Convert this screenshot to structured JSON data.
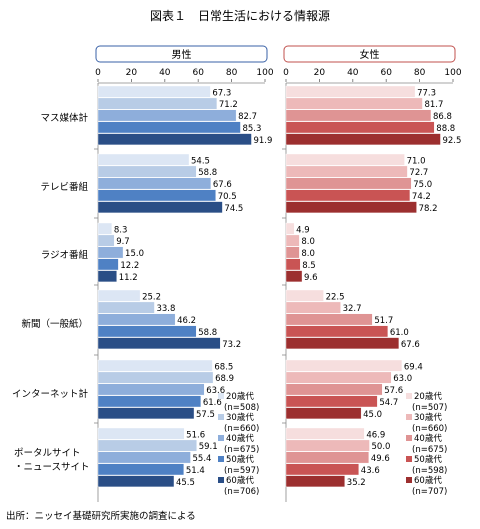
{
  "title": "図表１　日常生活における情報源",
  "source": "出所：ニッセイ基礎研究所実施の調査による",
  "chart_data": {
    "type": "bar",
    "orientation": "horizontal",
    "xlim": [
      0,
      100
    ],
    "ticks": [
      0,
      20,
      40,
      60,
      80,
      100
    ],
    "categories": [
      "マス媒体計",
      "テレビ番組",
      "ラジオ番組",
      "新聞（一般紙）",
      "インターネット計",
      "ポータルサイト\n・ニュースサイト"
    ],
    "panels": [
      {
        "name": "男性",
        "series": [
          {
            "name": "20歳代",
            "n": "(n=508)",
            "color": "#dce6f4",
            "values": [
              67.3,
              54.5,
              8.3,
              25.2,
              68.5,
              51.6
            ]
          },
          {
            "name": "30歳代",
            "n": "(n=660)",
            "color": "#b8cce6",
            "values": [
              71.2,
              58.8,
              9.7,
              33.8,
              68.9,
              59.1
            ]
          },
          {
            "name": "40歳代",
            "n": "(n=675)",
            "color": "#8eaedb",
            "values": [
              82.7,
              67.6,
              15.0,
              46.2,
              63.6,
              55.4
            ]
          },
          {
            "name": "50歳代",
            "n": "(n=597)",
            "color": "#4f81c4",
            "values": [
              85.3,
              70.5,
              12.2,
              58.8,
              61.6,
              51.4
            ]
          },
          {
            "name": "60歳代",
            "n": "(n=706)",
            "color": "#2a4e86",
            "values": [
              91.9,
              74.5,
              11.2,
              73.2,
              57.5,
              45.5
            ]
          }
        ]
      },
      {
        "name": "女性",
        "series": [
          {
            "name": "20歳代",
            "n": "(n=507)",
            "color": "#f6dede",
            "values": [
              77.3,
              71.0,
              4.9,
              22.5,
              69.4,
              46.9
            ]
          },
          {
            "name": "30歳代",
            "n": "(n=660)",
            "color": "#edb9b9",
            "values": [
              81.7,
              72.7,
              8.0,
              32.7,
              63.0,
              50.0
            ]
          },
          {
            "name": "40歳代",
            "n": "(n=675)",
            "color": "#df9494",
            "values": [
              86.8,
              75.0,
              8.0,
              51.7,
              57.6,
              49.6
            ]
          },
          {
            "name": "50歳代",
            "n": "(n=598)",
            "color": "#c95454",
            "values": [
              88.8,
              74.2,
              8.5,
              61.0,
              54.7,
              43.6
            ]
          },
          {
            "name": "60歳代",
            "n": "(n=707)",
            "color": "#9c2f2f",
            "values": [
              92.5,
              78.2,
              9.6,
              67.6,
              45.0,
              35.2
            ]
          }
        ]
      }
    ]
  }
}
